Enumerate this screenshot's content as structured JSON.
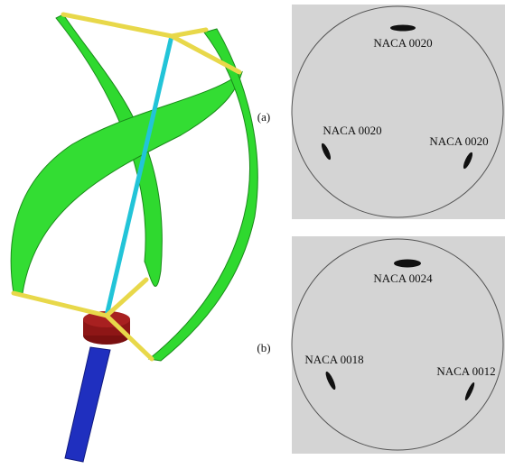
{
  "panels": [
    {
      "label": "(a)",
      "airfoils": [
        {
          "label": "NACA 0020"
        },
        {
          "label": "NACA 0020"
        },
        {
          "label": "NACA 0020"
        }
      ]
    },
    {
      "label": "(b)",
      "airfoils": [
        {
          "label": "NACA 0024"
        },
        {
          "label": "NACA 0018"
        },
        {
          "label": "NACA 0012"
        }
      ]
    }
  ]
}
